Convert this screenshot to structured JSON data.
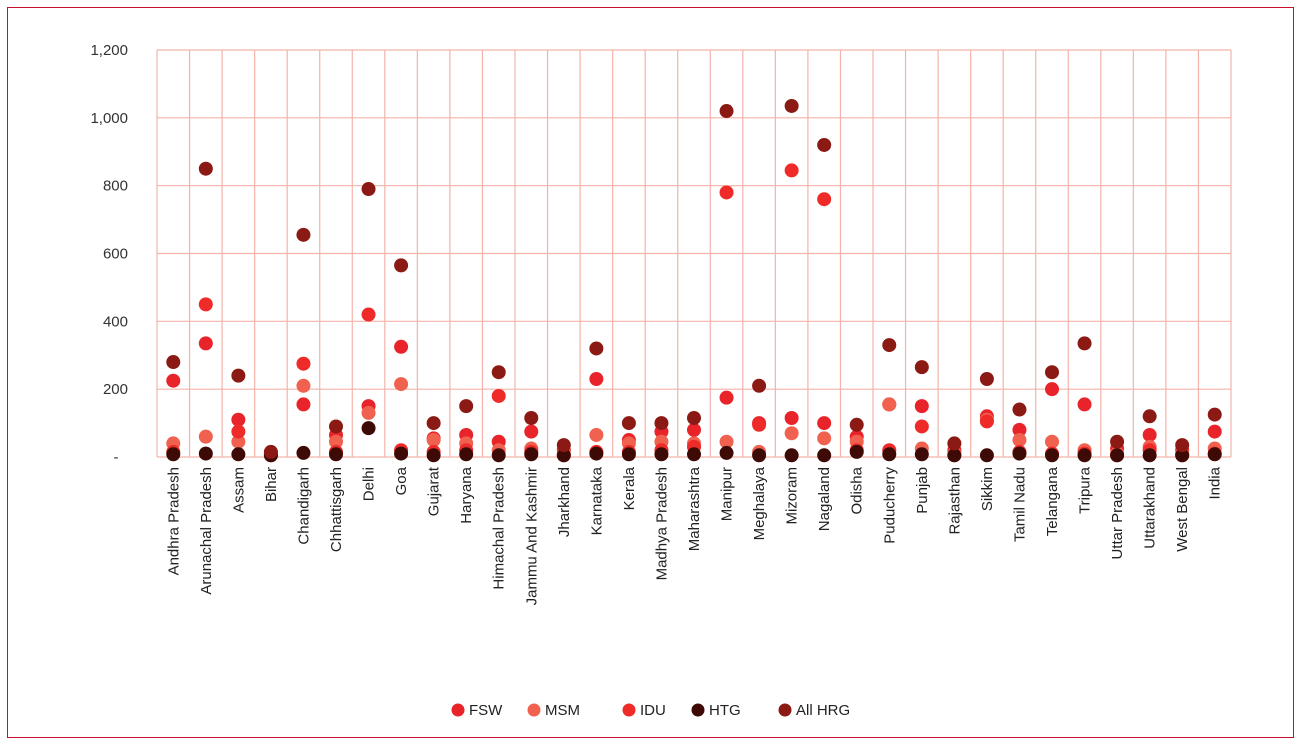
{
  "chart_data": {
    "type": "scatter",
    "title": "",
    "xlabel": "",
    "ylabel": "",
    "ylim": [
      0,
      1200
    ],
    "yticks": [
      0,
      200,
      400,
      600,
      800,
      1000,
      1200
    ],
    "ytick_labels": [
      "-",
      "200",
      "400",
      "600",
      "800",
      "1,000",
      "1,200"
    ],
    "grid": true,
    "legend_position": "bottom",
    "categories": [
      "Andhra Pradesh",
      "Arunachal Pradesh",
      "Assam",
      "Bihar",
      "Chandigarh",
      "Chhattisgarh",
      "Delhi",
      "Goa",
      "Gujarat",
      "Haryana",
      "Himachal Pradesh",
      "Jammu And Kashmir",
      "Jharkhand",
      "Karnataka",
      "Kerala",
      "Madhya Pradesh",
      "Maharashtra",
      "Manipur",
      "Meghalaya",
      "Mizoram",
      "Nagaland",
      "Odisha",
      "Puducherry",
      "Punjab",
      "Rajasthan",
      "Sikkim",
      "Tamil Nadu",
      "Telangana",
      "Tripura",
      "Uttar Pradesh",
      "Uttarakhand",
      "West Bengal",
      "India"
    ],
    "series": [
      {
        "name": "FSW",
        "color": "#e8242a",
        "values": [
          225,
          335,
          110,
          12,
          155,
          65,
          150,
          325,
          55,
          65,
          45,
          75,
          20,
          230,
          50,
          75,
          80,
          175,
          100,
          115,
          100,
          60,
          155,
          150,
          20,
          120,
          80,
          200,
          155,
          25,
          65,
          20,
          75
        ]
      },
      {
        "name": "MSM",
        "color": "#f0624f",
        "values": [
          40,
          60,
          45,
          8,
          210,
          45,
          130,
          215,
          50,
          40,
          20,
          25,
          10,
          65,
          40,
          45,
          40,
          45,
          15,
          70,
          55,
          45,
          155,
          25,
          10,
          110,
          50,
          45,
          20,
          10,
          30,
          10,
          25
        ]
      },
      {
        "name": "IDU",
        "color": "#ee2b28",
        "values": [
          15,
          450,
          75,
          5,
          275,
          15,
          420,
          20,
          15,
          20,
          180,
          15,
          5,
          15,
          15,
          20,
          30,
          780,
          95,
          845,
          760,
          20,
          20,
          90,
          5,
          105,
          15,
          10,
          10,
          5,
          20,
          5,
          10
        ]
      },
      {
        "name": "HTG",
        "color": "#3d0a06",
        "values": [
          8,
          10,
          8,
          5,
          12,
          8,
          85,
          10,
          5,
          8,
          5,
          8,
          5,
          10,
          8,
          8,
          8,
          12,
          5,
          5,
          5,
          15,
          8,
          8,
          5,
          5,
          10,
          5,
          5,
          5,
          5,
          5,
          8
        ]
      },
      {
        "name": "All HRG",
        "color": "#8b1a14",
        "values": [
          280,
          850,
          240,
          15,
          655,
          90,
          790,
          565,
          100,
          150,
          250,
          115,
          35,
          320,
          100,
          100,
          115,
          1020,
          210,
          1035,
          920,
          95,
          330,
          265,
          40,
          230,
          140,
          250,
          335,
          45,
          120,
          35,
          125
        ]
      }
    ]
  }
}
